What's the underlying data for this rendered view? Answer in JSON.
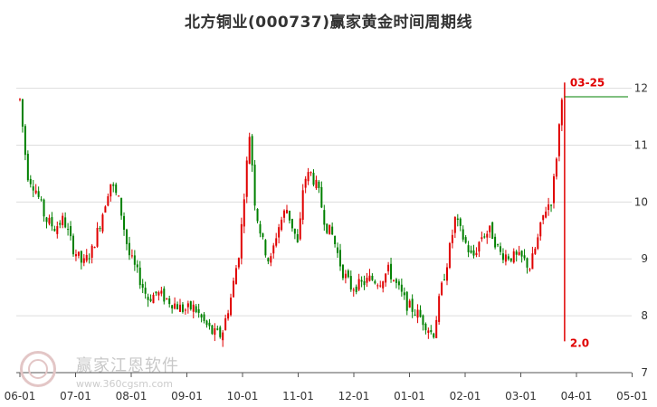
{
  "title": "北方铜业(000737)赢家黄金时间周期线",
  "watermark": {
    "brand": "赢家江恩软件",
    "url": "www.360cgsm.com"
  },
  "chart_data": {
    "type": "candlestick",
    "title": "北方铜业(000737)赢家黄金时间周期线",
    "x_ticks": [
      "06-01",
      "07-01",
      "08-01",
      "09-01",
      "10-01",
      "11-01",
      "12-01",
      "01-01",
      "02-01",
      "03-01",
      "04-01",
      "05-01"
    ],
    "y_ticks": [
      7,
      8,
      9,
      10,
      11,
      12
    ],
    "ylim": [
      7,
      12.2
    ],
    "annotations": [
      {
        "text": "03-25",
        "color": "#e00000"
      },
      {
        "text": "2.0",
        "color": "#e00000"
      }
    ],
    "colors": {
      "up": "#e00000",
      "down": "#008000",
      "horizontal_line": "#008000",
      "time_line": "#e00000",
      "grid": "#dddddd"
    },
    "close_path": [
      [
        "06-01",
        11.8
      ],
      [
        "06-05",
        10.5
      ],
      [
        "06-10",
        10.2
      ],
      [
        "06-15",
        9.7
      ],
      [
        "06-20",
        9.55
      ],
      [
        "06-25",
        9.7
      ],
      [
        "06-30",
        9.2
      ],
      [
        "07-05",
        8.9
      ],
      [
        "07-10",
        9.15
      ],
      [
        "07-15",
        9.7
      ],
      [
        "07-20",
        10.35
      ],
      [
        "07-25",
        10.0
      ],
      [
        "07-30",
        9.1
      ],
      [
        "08-05",
        8.7
      ],
      [
        "08-10",
        8.3
      ],
      [
        "08-15",
        8.4
      ],
      [
        "08-20",
        8.3
      ],
      [
        "08-25",
        8.2
      ],
      [
        "08-30",
        8.1
      ],
      [
        "09-05",
        8.15
      ],
      [
        "09-10",
        7.9
      ],
      [
        "09-15",
        7.7
      ],
      [
        "09-20",
        7.65
      ],
      [
        "09-25",
        8.3
      ],
      [
        "09-30",
        9.2
      ],
      [
        "10-02",
        10.2
      ],
      [
        "10-05",
        11.25
      ],
      [
        "10-08",
        9.9
      ],
      [
        "10-12",
        9.3
      ],
      [
        "10-16",
        8.9
      ],
      [
        "10-20",
        9.5
      ],
      [
        "10-25",
        9.9
      ],
      [
        "10-30",
        9.4
      ],
      [
        "11-01",
        9.2
      ],
      [
        "11-04",
        10.4
      ],
      [
        "11-08",
        10.5
      ],
      [
        "11-12",
        10.2
      ],
      [
        "11-16",
        9.6
      ],
      [
        "11-20",
        9.4
      ],
      [
        "11-25",
        8.8
      ],
      [
        "11-30",
        8.5
      ],
      [
        "12-05",
        8.55
      ],
      [
        "12-10",
        8.65
      ],
      [
        "12-15",
        8.6
      ],
      [
        "12-20",
        8.8
      ],
      [
        "12-25",
        8.5
      ],
      [
        "12-30",
        8.2
      ],
      [
        "01-05",
        8.05
      ],
      [
        "01-10",
        7.85
      ],
      [
        "01-14",
        7.65
      ],
      [
        "01-18",
        8.4
      ],
      [
        "01-22",
        9.0
      ],
      [
        "01-26",
        9.7
      ],
      [
        "01-30",
        9.4
      ],
      [
        "02-05",
        9.0
      ],
      [
        "02-10",
        9.4
      ],
      [
        "02-15",
        9.5
      ],
      [
        "02-20",
        9.1
      ],
      [
        "02-25",
        9.05
      ],
      [
        "03-02",
        9.0
      ],
      [
        "03-06",
        8.85
      ],
      [
        "03-10",
        9.3
      ],
      [
        "03-14",
        9.85
      ],
      [
        "03-18",
        10.05
      ],
      [
        "03-21",
        10.95
      ],
      [
        "03-24",
        12.1
      ]
    ]
  }
}
